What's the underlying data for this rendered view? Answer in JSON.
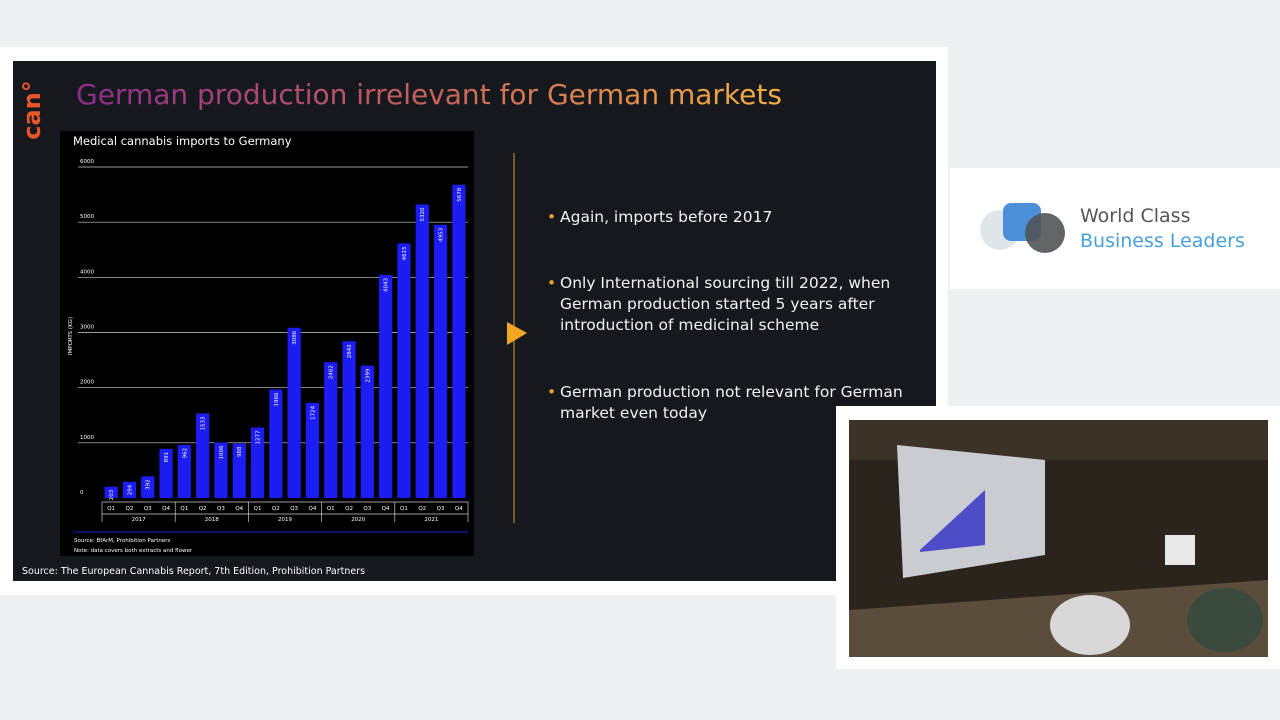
{
  "slide": {
    "logo": "can°",
    "title": "German production irrelevant for German markets",
    "bullets": [
      "Again, imports before 2017",
      "Only International sourcing till 2022, when German production started 5 years after introduction of medicinal scheme",
      "German production not relevant for German market even today"
    ],
    "footer": "Source: The European Cannabis Report, 7th Edition, Prohibition Partners"
  },
  "chart_data": {
    "type": "bar",
    "title": "Medical cannabis imports to Germany",
    "y_label": "IMPORTS (KG)",
    "categories": [
      "Q1",
      "Q2",
      "Q3",
      "Q4",
      "Q1",
      "Q2",
      "Q3",
      "Q4",
      "Q1",
      "Q2",
      "Q3",
      "Q4",
      "Q1",
      "Q2",
      "Q3",
      "Q4",
      "Q1",
      "Q2",
      "Q3",
      "Q4"
    ],
    "year_groups": [
      "2017",
      "2018",
      "2019",
      "2020",
      "2021"
    ],
    "values": [
      203,
      294,
      392,
      891,
      962,
      1533,
      1006,
      988,
      1277,
      1966,
      3086,
      1724,
      2462,
      2842,
      2399,
      4043,
      4615,
      5320,
      4953,
      5678
    ],
    "color": "#1c1cf5",
    "ylim": [
      0,
      6000
    ],
    "yticks": [
      0,
      1000,
      2000,
      3000,
      4000,
      5000,
      6000
    ],
    "grid": true,
    "source": "Source: BfArM, Prohibition Partners",
    "note": "Note: data covers both extracts and flower"
  },
  "brand": {
    "line1": "World Class",
    "line2": "Business Leaders"
  }
}
